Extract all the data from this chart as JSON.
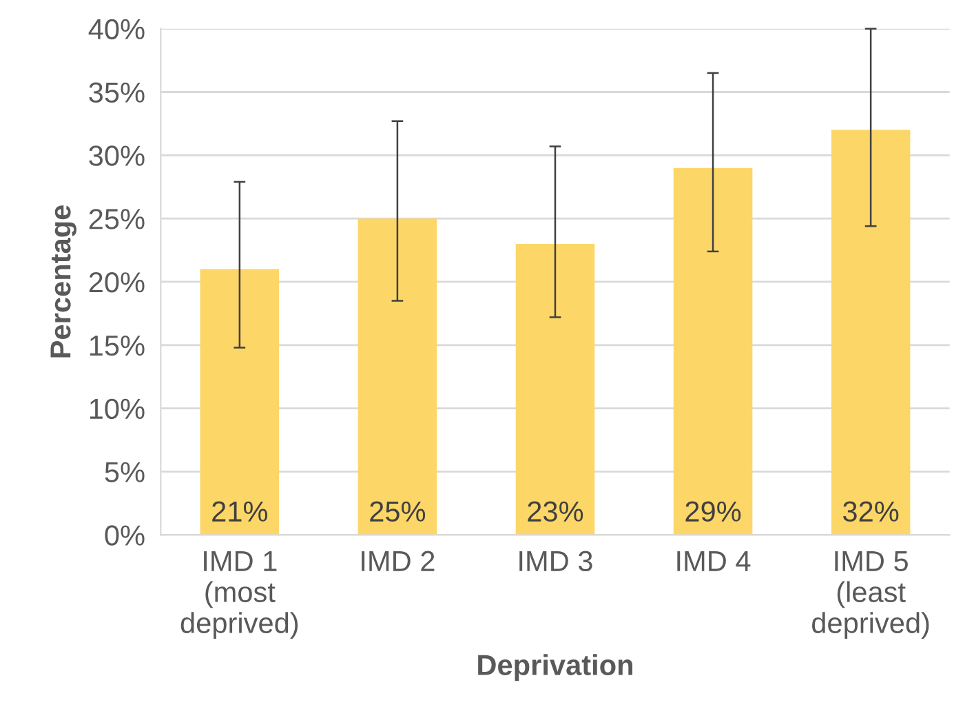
{
  "chart_data": {
    "type": "bar",
    "xlabel": "Deprivation",
    "ylabel": "Percentage",
    "categories": [
      "IMD 1\n(most\ndeprived)",
      "IMD 2",
      "IMD 3",
      "IMD 4",
      "IMD 5\n(least\ndeprived)"
    ],
    "values": [
      21,
      25,
      23,
      29,
      32
    ],
    "errors": [
      [
        14.8,
        27.9
      ],
      [
        18.5,
        32.7
      ],
      [
        17.2,
        30.7
      ],
      [
        22.4,
        36.5
      ],
      [
        24.4,
        40
      ]
    ],
    "value_labels": [
      "21%",
      "25%",
      "23%",
      "29%",
      "32%"
    ],
    "color": "#fcd667",
    "ylim": [
      0,
      40
    ],
    "yticks": [
      {
        "value": 0,
        "label": "0%"
      },
      {
        "value": 5,
        "label": "5%"
      },
      {
        "value": 10,
        "label": "10%"
      },
      {
        "value": 15,
        "label": "15%"
      },
      {
        "value": 20,
        "label": "20%"
      },
      {
        "value": 25,
        "label": "25%"
      },
      {
        "value": 30,
        "label": "30%"
      },
      {
        "value": 35,
        "label": "35%"
      },
      {
        "value": 40,
        "label": "40%"
      }
    ],
    "grid": "y"
  }
}
